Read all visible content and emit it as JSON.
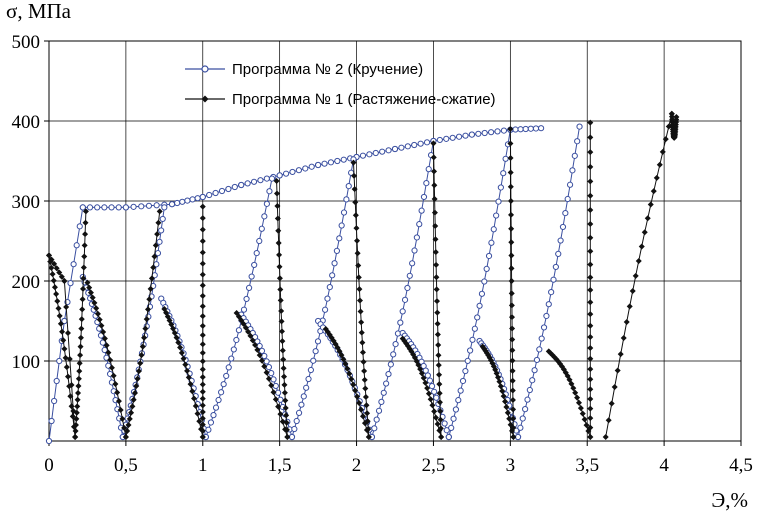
{
  "chart_data": {
    "type": "line",
    "ylabel": "σ, МПа",
    "xlabel": "Э,%",
    "xlim": [
      0,
      4.5
    ],
    "ylim": [
      0,
      500
    ],
    "x_ticks": [
      "0",
      "0,5",
      "1",
      "1,5",
      "2",
      "2,5",
      "3",
      "3,5",
      "4",
      "4,5"
    ],
    "x_tick_values": [
      0,
      0.5,
      1,
      1.5,
      2,
      2.5,
      3,
      3.5,
      4,
      4.5
    ],
    "y_ticks": [
      "100",
      "200",
      "300",
      "400",
      "500"
    ],
    "y_tick_values": [
      100,
      200,
      300,
      400,
      500
    ],
    "grid": true,
    "legend_position": "top-center",
    "colors": {
      "series2": "#3a4fa0",
      "series1": "#111111",
      "grid": "#000000"
    },
    "series": [
      {
        "name": "Программа № 2 (Кручение)",
        "marker": "open-circle",
        "loading_envelope": [
          {
            "x": 0,
            "y": 0
          },
          {
            "x": 0.1,
            "y": 150
          },
          {
            "x": 0.22,
            "y": 292
          },
          {
            "x": 0.5,
            "y": 292
          },
          {
            "x": 0.8,
            "y": 296
          },
          {
            "x": 1.0,
            "y": 305
          },
          {
            "x": 1.25,
            "y": 320
          },
          {
            "x": 1.5,
            "y": 332
          },
          {
            "x": 1.75,
            "y": 345
          },
          {
            "x": 2.0,
            "y": 355
          },
          {
            "x": 2.25,
            "y": 365
          },
          {
            "x": 2.5,
            "y": 375
          },
          {
            "x": 2.75,
            "y": 383
          },
          {
            "x": 3.0,
            "y": 389
          },
          {
            "x": 3.2,
            "y": 391
          }
        ],
        "cycles": [
          {
            "unload": [
              [
                0.22,
                205
              ],
              [
                0.48,
                5
              ]
            ],
            "reload": [
              [
                0.48,
                5
              ],
              [
                0.75,
                292
              ]
            ]
          },
          {
            "unload": [
              [
                0.73,
                178
              ],
              [
                1.02,
                5
              ]
            ],
            "reload": [
              [
                1.02,
                5
              ],
              [
                1.45,
                328
              ]
            ]
          },
          {
            "unload": [
              [
                1.25,
                158
              ],
              [
                1.58,
                5
              ]
            ],
            "reload": [
              [
                1.58,
                5
              ],
              [
                1.98,
                352
              ]
            ]
          },
          {
            "unload": [
              [
                1.75,
                150
              ],
              [
                2.1,
                5
              ]
            ],
            "reload": [
              [
                2.1,
                5
              ],
              [
                2.5,
                375
              ]
            ]
          },
          {
            "unload": [
              [
                2.3,
                135
              ],
              [
                2.6,
                5
              ]
            ],
            "reload": [
              [
                2.6,
                5
              ],
              [
                3.0,
                389
              ]
            ]
          },
          {
            "unload": [
              [
                2.8,
                125
              ],
              [
                3.05,
                5
              ]
            ],
            "reload": [
              [
                3.05,
                5
              ],
              [
                3.45,
                393
              ]
            ]
          }
        ]
      },
      {
        "name": "Программа № 1 (Растяжение-сжатие)",
        "marker": "filled-diamond",
        "loading_envelope": [
          {
            "x": 0,
            "y": 232
          },
          {
            "x": 0.1,
            "y": 200
          },
          {
            "x": 0.17,
            "y": 5
          }
        ],
        "peaks": [
          {
            "x": 0.24,
            "y": 287
          },
          {
            "x": 0.72,
            "y": 287
          },
          {
            "x": 1.0,
            "y": 293
          },
          {
            "x": 1.48,
            "y": 325
          },
          {
            "x": 1.98,
            "y": 348
          },
          {
            "x": 2.5,
            "y": 372
          },
          {
            "x": 3.0,
            "y": 390
          },
          {
            "x": 3.52,
            "y": 398
          },
          {
            "x": 4.05,
            "y": 409
          }
        ],
        "cycles": [
          {
            "unload": [
              [
                0.0,
                232
              ],
              [
                0.17,
                5
              ]
            ],
            "reload": [
              [
                0.17,
                5
              ],
              [
                0.24,
                287
              ]
            ]
          },
          {
            "unload": [
              [
                0.25,
                198
              ],
              [
                0.5,
                5
              ]
            ],
            "reload": [
              [
                0.5,
                5
              ],
              [
                0.72,
                287
              ]
            ]
          },
          {
            "unload": [
              [
                0.75,
                165
              ],
              [
                1.0,
                5
              ]
            ],
            "reload": [
              [
                1.0,
                5
              ],
              [
                1.0,
                293
              ]
            ]
          },
          {
            "unload": [
              [
                1.22,
                160
              ],
              [
                1.55,
                5
              ]
            ],
            "reload": [
              [
                1.55,
                5
              ],
              [
                1.48,
                325
              ]
            ]
          },
          {
            "unload": [
              [
                1.8,
                140
              ],
              [
                2.08,
                5
              ]
            ],
            "reload": [
              [
                2.08,
                5
              ],
              [
                1.98,
                348
              ]
            ]
          },
          {
            "unload": [
              [
                2.3,
                128
              ],
              [
                2.55,
                5
              ]
            ],
            "reload": [
              [
                2.55,
                5
              ],
              [
                2.5,
                372
              ]
            ]
          },
          {
            "unload": [
              [
                2.82,
                118
              ],
              [
                3.02,
                5
              ]
            ],
            "reload": [
              [
                3.02,
                5
              ],
              [
                3.0,
                390
              ]
            ]
          },
          {
            "unload": [
              [
                3.25,
                112
              ],
              [
                3.52,
                5
              ]
            ],
            "reload": [
              [
                3.52,
                5
              ],
              [
                3.52,
                398
              ]
            ]
          },
          {
            "unload": [
              [
                3.62,
                5
              ],
              [
                4.05,
                409
              ]
            ],
            "reload": [
              [
                4.05,
                409
              ],
              [
                4.08,
                405
              ]
            ]
          }
        ]
      }
    ]
  }
}
